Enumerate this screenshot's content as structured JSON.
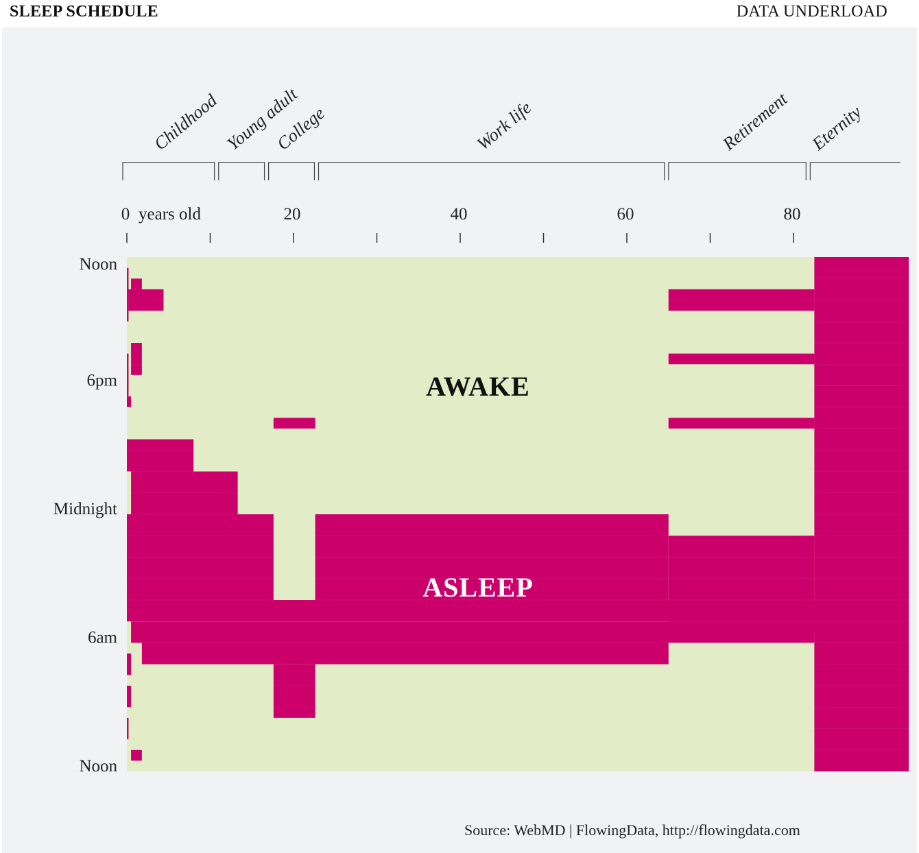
{
  "header": {
    "title": "SLEEP SCHEDULE",
    "brand": "DATA UNDERLOAD"
  },
  "source": "Source: WebMD  |  FlowingData, http://flowingdata.com",
  "colors": {
    "awake": "#e2ecc6",
    "asleep": "#cc006b",
    "background": "#f1f2f4"
  },
  "chart_data": {
    "type": "heatmap",
    "title": "SLEEP SCHEDULE",
    "x_label": "years old",
    "x_ticks": [
      0,
      20,
      40,
      60,
      80
    ],
    "x_range": [
      0,
      94
    ],
    "y_ticks": [
      "Noon",
      "6pm",
      "Midnight",
      "6am",
      "Noon"
    ],
    "y_range_hours": [
      12,
      36
    ],
    "life_stages": [
      {
        "label": "Childhood",
        "start": 0,
        "end": 11
      },
      {
        "label": "Young adult",
        "start": 11.5,
        "end": 17
      },
      {
        "label": "College",
        "start": 17.5,
        "end": 23
      },
      {
        "label": "Work life",
        "start": 23.5,
        "end": 65
      },
      {
        "label": "Retirement",
        "start": 65.5,
        "end": 82
      },
      {
        "label": "Eternity",
        "start": 82.5,
        "end": 93.5
      }
    ],
    "state_labels": {
      "awake": "AWAKE",
      "asleep": "ASLEEP"
    },
    "asleep_blocks": [
      {
        "age_start": 0,
        "age_end": 0.2,
        "hour_start": 12.5,
        "hour_end": 15
      },
      {
        "age_start": 0.5,
        "age_end": 1.8,
        "hour_start": 13,
        "hour_end": 13.5
      },
      {
        "age_start": 0.2,
        "age_end": 4.4,
        "hour_start": 13.5,
        "hour_end": 14.5
      },
      {
        "age_start": 0,
        "age_end": 0.2,
        "hour_start": 16.5,
        "hour_end": 18.5
      },
      {
        "age_start": 0.5,
        "age_end": 1.8,
        "hour_start": 16,
        "hour_end": 17.5
      },
      {
        "age_start": 0,
        "age_end": 0.5,
        "hour_start": 18.5,
        "hour_end": 19
      },
      {
        "age_start": 0,
        "age_end": 0.2,
        "hour_start": 21,
        "hour_end": 22
      },
      {
        "age_start": 0,
        "age_end": 8,
        "hour_start": 20.5,
        "hour_end": 22
      },
      {
        "age_start": 0.5,
        "age_end": 13.3,
        "hour_start": 22,
        "hour_end": 24
      },
      {
        "age_start": 0,
        "age_end": 17.6,
        "hour_start": 24,
        "hour_end": 28
      },
      {
        "age_start": 17.6,
        "age_end": 22.6,
        "hour_start": 19.5,
        "hour_end": 20
      },
      {
        "age_start": 22.6,
        "age_end": 65,
        "hour_start": 24,
        "hour_end": 28
      },
      {
        "age_start": 0,
        "age_end": 82.5,
        "hour_start": 28,
        "hour_end": 29
      },
      {
        "age_start": 0.5,
        "age_end": 82.5,
        "hour_start": 29,
        "hour_end": 30
      },
      {
        "age_start": 1.8,
        "age_end": 65,
        "hour_start": 30,
        "hour_end": 31
      },
      {
        "age_start": 17.6,
        "age_end": 22.6,
        "hour_start": 31,
        "hour_end": 33.5
      },
      {
        "age_start": 0,
        "age_end": 0.5,
        "hour_start": 30.5,
        "hour_end": 31.5
      },
      {
        "age_start": 0,
        "age_end": 0.5,
        "hour_start": 32,
        "hour_end": 33
      },
      {
        "age_start": 0,
        "age_end": 0.2,
        "hour_start": 33.5,
        "hour_end": 34.5
      },
      {
        "age_start": 0.5,
        "age_end": 1.8,
        "hour_start": 35,
        "hour_end": 35.5
      },
      {
        "age_start": 65,
        "age_end": 82.5,
        "hour_start": 13.5,
        "hour_end": 14.5
      },
      {
        "age_start": 65,
        "age_end": 82.5,
        "hour_start": 16.5,
        "hour_end": 17
      },
      {
        "age_start": 65,
        "age_end": 82.5,
        "hour_start": 19.5,
        "hour_end": 20
      },
      {
        "age_start": 65,
        "age_end": 82.5,
        "hour_start": 25,
        "hour_end": 29.5
      },
      {
        "age_start": 82.5,
        "age_end": 94,
        "hour_start": 12,
        "hour_end": 36
      }
    ]
  }
}
